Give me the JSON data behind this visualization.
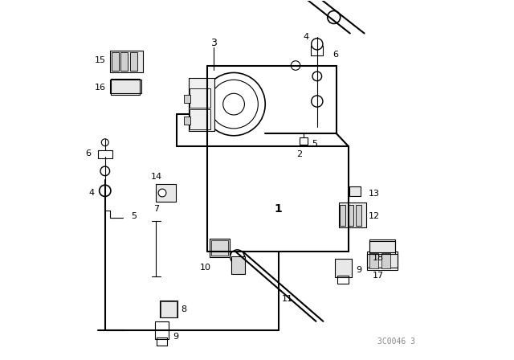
{
  "title": "",
  "background_color": "#ffffff",
  "line_color": "#000000",
  "watermark": "3C0046 3",
  "fig_width": 6.4,
  "fig_height": 4.48,
  "dpi": 100
}
